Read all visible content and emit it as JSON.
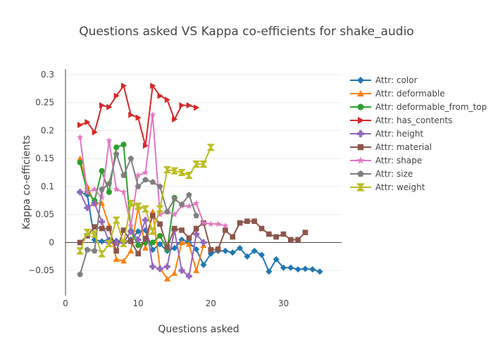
{
  "chart_data": {
    "type": "line",
    "title": "Questions asked VS Kappa co-efficients for shake_audio",
    "xlabel": "Questions asked",
    "ylabel": "Kappa co-efficients",
    "xlim": [
      0,
      38
    ],
    "ylim": [
      -0.095,
      0.31
    ],
    "x_ticks": [
      0,
      10,
      20,
      30
    ],
    "y_ticks": [
      -0.05,
      0,
      0.05,
      0.1,
      0.15,
      0.2,
      0.25,
      0.3
    ],
    "x_tick_labels": [
      "0",
      "10",
      "20",
      "30"
    ],
    "y_tick_labels": [
      "−0.05",
      "0",
      "0.05",
      "0.1",
      "0.15",
      "0.2",
      "0.25",
      "0.3"
    ],
    "legend_position": "right",
    "series": [
      {
        "name": "Attr: color",
        "color": "#1f77b4",
        "marker": "diamond",
        "x": [
          2,
          3,
          4,
          5,
          6,
          7,
          8,
          9,
          10,
          11,
          12,
          13,
          14,
          15,
          16,
          17,
          18,
          19,
          20,
          21,
          22,
          23,
          24,
          25,
          26,
          27,
          28,
          29,
          30,
          31,
          32,
          33,
          34,
          35
        ],
        "y": [
          0.09,
          0.085,
          0.005,
          0.002,
          0.005,
          0.003,
          0.0,
          0.005,
          0.02,
          0.022,
          -0.013,
          -0.003,
          -0.015,
          -0.01,
          0.005,
          0.0,
          -0.012,
          -0.04,
          -0.02,
          -0.015,
          -0.015,
          -0.018,
          -0.01,
          -0.025,
          -0.015,
          -0.022,
          -0.052,
          -0.03,
          -0.045,
          -0.045,
          -0.048,
          -0.047,
          -0.048,
          -0.052
        ]
      },
      {
        "name": "Attr: deformable",
        "color": "#ff7f0e",
        "marker": "triangle-up",
        "x": [
          2,
          3,
          4,
          5,
          6,
          7,
          8,
          9,
          10,
          11,
          12,
          13,
          14,
          15,
          16,
          17,
          18,
          19
        ],
        "y": [
          0.15,
          0.1,
          0.07,
          0.07,
          0.03,
          -0.03,
          -0.033,
          -0.015,
          0.063,
          -0.01,
          0.055,
          -0.045,
          -0.065,
          -0.055,
          0.0,
          -0.003,
          -0.05,
          -0.005
        ]
      },
      {
        "name": "Attr: deformable_from_top",
        "color": "#2ca02c",
        "marker": "circle",
        "x": [
          2,
          3,
          4,
          5,
          6,
          7,
          8,
          9,
          10,
          11,
          12,
          13,
          14,
          15
        ],
        "y": [
          0.143,
          0.09,
          0.075,
          0.128,
          0.09,
          0.17,
          0.175,
          0.02,
          -0.005,
          0.0,
          0.0,
          0.012,
          -0.012,
          0.08
        ]
      },
      {
        "name": "Attr: has_contents",
        "color": "#d62728",
        "marker": "triangle-right",
        "x": [
          2,
          3,
          4,
          5,
          6,
          7,
          8,
          9,
          10,
          11,
          12,
          13,
          14,
          15,
          16,
          17,
          18
        ],
        "y": [
          0.21,
          0.215,
          0.197,
          0.245,
          0.242,
          0.262,
          0.28,
          0.228,
          0.223,
          0.173,
          0.28,
          0.262,
          0.255,
          0.22,
          0.245,
          0.245,
          0.241
        ]
      },
      {
        "name": "Attr: height",
        "color": "#9467bd",
        "marker": "cross",
        "x": [
          2,
          3,
          4,
          5,
          6,
          7,
          8,
          9,
          10,
          11,
          12,
          13,
          14,
          15,
          16,
          17,
          18,
          19
        ],
        "y": [
          0.09,
          0.062,
          0.07,
          0.037,
          0.0,
          0.0,
          0.0,
          0.02,
          0.005,
          0.04,
          -0.043,
          -0.047,
          -0.043,
          0.022,
          -0.05,
          -0.06,
          0.015,
          0.0
        ]
      },
      {
        "name": "Attr: material",
        "color": "#8c564b",
        "marker": "square",
        "x": [
          2,
          3,
          4,
          5,
          6,
          7,
          8,
          9,
          10,
          11,
          12,
          13,
          14,
          15,
          16,
          17,
          18,
          19,
          20,
          21,
          22,
          23,
          24,
          25,
          26,
          27,
          28,
          29,
          30,
          31,
          32,
          33
        ],
        "y": [
          0.0,
          0.012,
          0.028,
          0.025,
          0.025,
          -0.015,
          0.022,
          0.002,
          -0.02,
          0.007,
          0.048,
          0.033,
          -0.008,
          0.025,
          0.022,
          0.008,
          0.025,
          0.035,
          -0.013,
          -0.012,
          0.022,
          0.01,
          0.035,
          0.038,
          0.038,
          0.025,
          0.015,
          0.01,
          0.015,
          0.005,
          0.005,
          0.018
        ]
      },
      {
        "name": "Attr: shape",
        "color": "#e377c2",
        "marker": "star",
        "x": [
          2,
          3,
          4,
          5,
          6,
          7,
          8,
          9,
          10,
          11,
          12,
          13,
          14,
          15,
          16,
          17,
          18,
          19,
          20,
          21,
          22
        ],
        "y": [
          0.188,
          0.09,
          0.095,
          0.08,
          0.182,
          0.095,
          0.09,
          0.03,
          0.12,
          0.125,
          0.228,
          0.05,
          0.055,
          0.05,
          0.065,
          0.065,
          0.07,
          0.035,
          0.033,
          0.033,
          0.03
        ]
      },
      {
        "name": "Attr: size",
        "color": "#7f7f7f",
        "marker": "pentagon",
        "x": [
          2,
          3,
          4,
          5,
          6,
          7,
          8,
          9,
          10,
          11,
          12,
          13,
          14,
          15,
          16,
          17,
          18
        ],
        "y": [
          -0.057,
          -0.013,
          -0.015,
          0.095,
          0.105,
          0.158,
          0.12,
          0.15,
          0.1,
          0.112,
          0.108,
          0.1,
          0.055,
          0.078,
          0.068,
          0.085,
          0.048
        ]
      },
      {
        "name": "Attr: weight",
        "color": "#bcbd22",
        "marker": "hourglass",
        "x": [
          2,
          3,
          4,
          5,
          6,
          7,
          8,
          9,
          10,
          11,
          12,
          13,
          14,
          15,
          16,
          17,
          18,
          19,
          20
        ],
        "y": [
          -0.015,
          0.018,
          0.015,
          -0.02,
          -0.002,
          0.04,
          -0.002,
          0.07,
          0.065,
          0.06,
          0.02,
          0.06,
          0.13,
          0.128,
          0.125,
          0.12,
          0.14,
          0.14,
          0.17
        ]
      }
    ]
  }
}
